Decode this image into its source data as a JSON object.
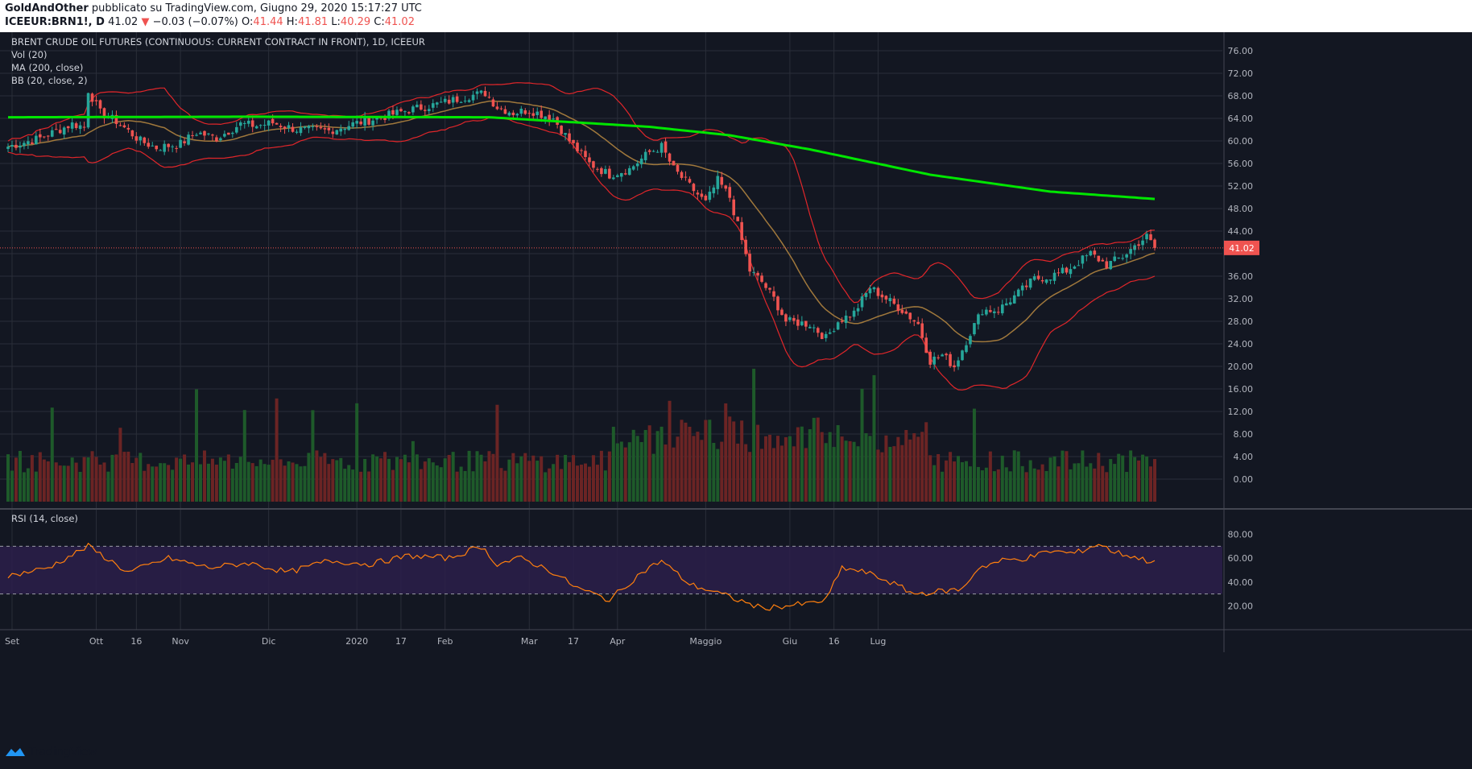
{
  "header": {
    "author": "GoldAndOther",
    "published_text": "pubblicato su TradingView.com, Giugno 29, 2020 15:17:27 UTC",
    "symbol": "ICEEUR:BRN1!, D",
    "last": "41.02",
    "change_arrow": "▼",
    "change": "−0.03 (−0.07%)",
    "o_label": "O:",
    "o": "41.44",
    "h_label": "H:",
    "h": "41.81",
    "l_label": "L:",
    "l": "40.29",
    "c_label": "C:",
    "c": "41.02"
  },
  "legend": {
    "title": "BRENT CRUDE OIL FUTURES (CONTINUOUS: CURRENT CONTRACT IN FRONT), 1D, ICEEUR",
    "vol": "Vol (20)",
    "ma": "MA (200, close)",
    "bb": "BB (20, close, 2)",
    "rsi": "RSI (14, close)"
  },
  "footer": {
    "brand": "TradingView",
    "logo_icon": "tradingview-logo-icon"
  },
  "colors": {
    "background": "#131722",
    "grid": "#2a2e39",
    "up": "#26a69a",
    "down": "#ef5350",
    "ma200": "#00e600",
    "bb_band": "#e0262a",
    "bb_basis": "#a0783c",
    "rsi_line": "#ff7f0e",
    "rsi_band": "#2b1f4a",
    "vol_up": "#1e5a2a",
    "vol_down": "#6b2424",
    "text": "#b2b5be"
  },
  "chart_data": {
    "type": "candlestick",
    "price_axis": {
      "ticks": [
        0.0,
        4.0,
        8.0,
        12.0,
        16.0,
        20.0,
        24.0,
        28.0,
        32.0,
        36.0,
        40.0,
        44.0,
        48.0,
        52.0,
        56.0,
        60.0,
        64.0,
        68.0,
        72.0,
        76.0
      ],
      "tick_labels": [
        "0.00",
        "4.00",
        "8.00",
        "12.00",
        "16.00",
        "20.00",
        "24.00",
        "28.00",
        "32.00",
        "36.00",
        "40.00",
        "44.00",
        "48.00",
        "52.00",
        "56.00",
        "60.00",
        "64.00",
        "68.00",
        "72.00",
        "76.00"
      ]
    },
    "rsi_axis": {
      "ticks": [
        20,
        40,
        60,
        80
      ],
      "tick_labels": [
        "20.00",
        "40.00",
        "60.00",
        "80.00"
      ],
      "upper_band": 70,
      "lower_band": 30
    },
    "x_labels": [
      {
        "label": "Set",
        "month": 0,
        "day": 2
      },
      {
        "label": "Ott",
        "month": 1,
        "day": 1
      },
      {
        "label": "16",
        "month": 1,
        "day": 16
      },
      {
        "label": "Nov",
        "month": 2,
        "day": 1
      },
      {
        "label": "Dic",
        "month": 3,
        "day": 1
      },
      {
        "label": "2020",
        "month": 4,
        "day": 1
      },
      {
        "label": "17",
        "month": 4,
        "day": 17
      },
      {
        "label": "Feb",
        "month": 5,
        "day": 1
      },
      {
        "label": "Mar",
        "month": 6,
        "day": 1
      },
      {
        "label": "17",
        "month": 6,
        "day": 17
      },
      {
        "label": "Apr",
        "month": 7,
        "day": 1
      },
      {
        "label": "Maggio",
        "month": 8,
        "day": 1
      },
      {
        "label": "Giu",
        "month": 9,
        "day": 1
      },
      {
        "label": "16",
        "month": 9,
        "day": 16
      },
      {
        "label": "Lug",
        "month": 10,
        "day": 1
      }
    ],
    "last_price_label": "41.02",
    "last_price": 41.02,
    "close_anchors": [
      [
        0,
        59
      ],
      [
        8,
        60.5
      ],
      [
        16,
        63
      ],
      [
        19,
        62.5
      ],
      [
        20,
        69
      ],
      [
        23,
        65
      ],
      [
        27,
        63.5
      ],
      [
        33,
        60
      ],
      [
        37,
        58.8
      ],
      [
        43,
        59.5
      ],
      [
        47,
        61.5
      ],
      [
        52,
        60.5
      ],
      [
        58,
        63
      ],
      [
        62,
        62.7
      ],
      [
        66,
        63.2
      ],
      [
        72,
        62
      ],
      [
        80,
        61.8
      ],
      [
        86,
        63
      ],
      [
        92,
        64
      ],
      [
        100,
        65.5
      ],
      [
        107,
        66.5
      ],
      [
        115,
        68
      ],
      [
        119,
        68.5
      ],
      [
        122,
        66
      ],
      [
        126,
        65
      ],
      [
        130,
        65.5
      ],
      [
        136,
        64
      ],
      [
        140,
        60
      ],
      [
        145,
        56
      ],
      [
        150,
        54
      ],
      [
        155,
        55
      ],
      [
        160,
        58
      ],
      [
        163,
        59
      ],
      [
        166,
        55
      ],
      [
        170,
        52
      ],
      [
        174,
        49
      ],
      [
        177,
        53
      ],
      [
        180,
        50
      ],
      [
        182,
        45
      ],
      [
        185,
        37
      ],
      [
        188,
        35
      ],
      [
        191,
        32
      ],
      [
        194,
        28
      ],
      [
        200,
        27.5
      ],
      [
        204,
        25
      ],
      [
        207,
        28
      ],
      [
        211,
        29.5
      ],
      [
        215,
        34
      ],
      [
        219,
        32
      ],
      [
        223,
        30
      ],
      [
        227,
        27.5
      ],
      [
        230,
        21
      ],
      [
        233,
        22
      ],
      [
        236,
        20
      ],
      [
        240,
        26
      ],
      [
        243,
        30
      ],
      [
        247,
        30
      ],
      [
        252,
        33
      ],
      [
        256,
        35.5
      ],
      [
        260,
        36
      ],
      [
        264,
        37
      ],
      [
        267,
        38.5
      ],
      [
        270,
        40
      ],
      [
        274,
        38
      ],
      [
        278,
        39.5
      ],
      [
        282,
        42
      ],
      [
        284,
        43
      ],
      [
        286,
        41.02
      ]
    ],
    "volume": {
      "note": "relative daily volume bars",
      "max_tick": 16.0
    },
    "ma200_anchors": [
      [
        0,
        64.2
      ],
      [
        60,
        64.3
      ],
      [
        120,
        64.2
      ],
      [
        160,
        62.5
      ],
      [
        180,
        61
      ],
      [
        200,
        58.5
      ],
      [
        230,
        54
      ],
      [
        260,
        51
      ],
      [
        286,
        49.7
      ]
    ],
    "rsi_anchors": [
      [
        0,
        45
      ],
      [
        10,
        52
      ],
      [
        20,
        70
      ],
      [
        30,
        48
      ],
      [
        40,
        60
      ],
      [
        50,
        52
      ],
      [
        60,
        56
      ],
      [
        70,
        48
      ],
      [
        80,
        58
      ],
      [
        90,
        55
      ],
      [
        100,
        62
      ],
      [
        110,
        60
      ],
      [
        118,
        70
      ],
      [
        122,
        55
      ],
      [
        128,
        60
      ],
      [
        135,
        50
      ],
      [
        142,
        35
      ],
      [
        150,
        25
      ],
      [
        158,
        48
      ],
      [
        163,
        58
      ],
      [
        170,
        38
      ],
      [
        176,
        32
      ],
      [
        182,
        25
      ],
      [
        188,
        18
      ],
      [
        194,
        20
      ],
      [
        200,
        22
      ],
      [
        204,
        25
      ],
      [
        208,
        52
      ],
      [
        214,
        48
      ],
      [
        220,
        40
      ],
      [
        226,
        30
      ],
      [
        232,
        32
      ],
      [
        238,
        34
      ],
      [
        242,
        52
      ],
      [
        248,
        58
      ],
      [
        254,
        60
      ],
      [
        260,
        66
      ],
      [
        266,
        64
      ],
      [
        272,
        72
      ],
      [
        276,
        65
      ],
      [
        280,
        62
      ],
      [
        284,
        58
      ],
      [
        286,
        58
      ]
    ]
  }
}
